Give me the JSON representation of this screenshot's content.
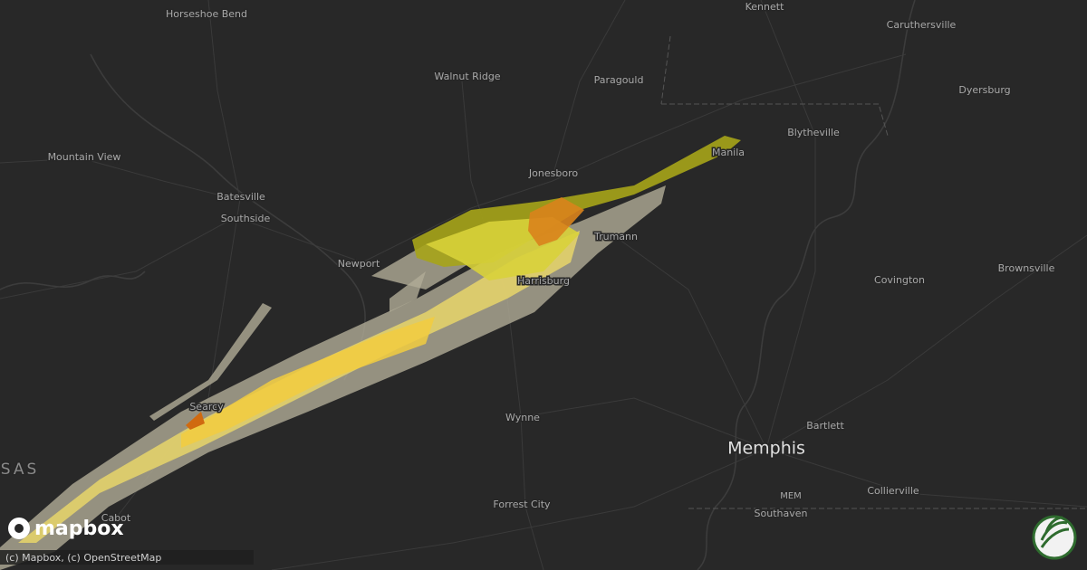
{
  "labels": [
    "Horseshoe Bend",
    "Kennett",
    "Caruthersville",
    "Walnut Ridge",
    "Paragould",
    "Dyersburg",
    "Mountain View",
    "Blytheville",
    "Manila",
    "Jonesboro",
    "Batesville",
    "Southside",
    "Trumann",
    "Newport",
    "Harrisburg",
    "Brownsville",
    "Covington",
    "Wynne",
    "Searcy",
    "Bartlett",
    "Memphis",
    "MEM",
    "Collierville",
    "Southaven",
    "Forrest City",
    "Cabot",
    "SAS"
  ],
  "logo": "mapbox",
  "attribution": "(c) Mapbox, (c) OpenStreetMap"
}
